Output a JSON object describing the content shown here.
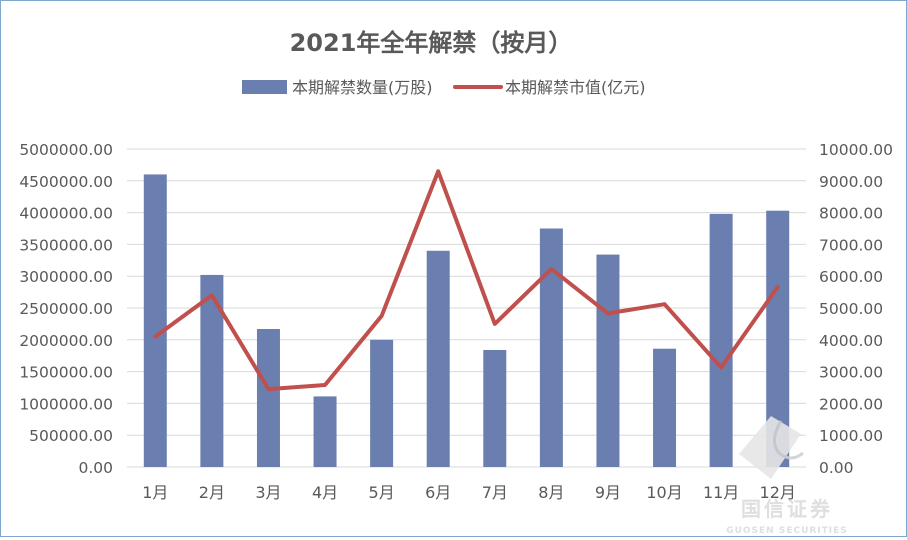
{
  "chart_data": {
    "type": "bar",
    "title": "2021年全年解禁（按月）",
    "categories": [
      "1月",
      "2月",
      "3月",
      "4月",
      "5月",
      "6月",
      "7月",
      "8月",
      "9月",
      "10月",
      "11月",
      "12月"
    ],
    "series": [
      {
        "name": "本期解禁数量(万股)",
        "type": "bar",
        "axis": "left",
        "color": "#6a7eaf",
        "values": [
          4600000,
          3020000,
          2170000,
          1110000,
          2000000,
          3400000,
          1840000,
          3750000,
          3340000,
          1860000,
          3980000,
          4030000
        ]
      },
      {
        "name": "本期解禁市值(亿元)",
        "type": "line",
        "axis": "right",
        "color": "#c0504d",
        "values": [
          4100,
          5400,
          2450,
          2580,
          4750,
          9300,
          4500,
          6230,
          4830,
          5120,
          3130,
          5660
        ]
      }
    ],
    "y_left": {
      "ylim": [
        0,
        5000000
      ],
      "ticks": [
        "0.00",
        "500000.00",
        "1000000.00",
        "1500000.00",
        "2000000.00",
        "2500000.00",
        "3000000.00",
        "3500000.00",
        "4000000.00",
        "4500000.00",
        "5000000.00"
      ]
    },
    "y_right": {
      "ylim": [
        0,
        10000
      ],
      "ticks": [
        "0.00",
        "1000.00",
        "2000.00",
        "3000.00",
        "4000.00",
        "5000.00",
        "6000.00",
        "7000.00",
        "8000.00",
        "9000.00",
        "10000.00"
      ]
    },
    "grid": true,
    "legend_position": "top"
  },
  "watermark": {
    "text": "国信证券",
    "subtext": "GUOSEN SECURITIES"
  }
}
